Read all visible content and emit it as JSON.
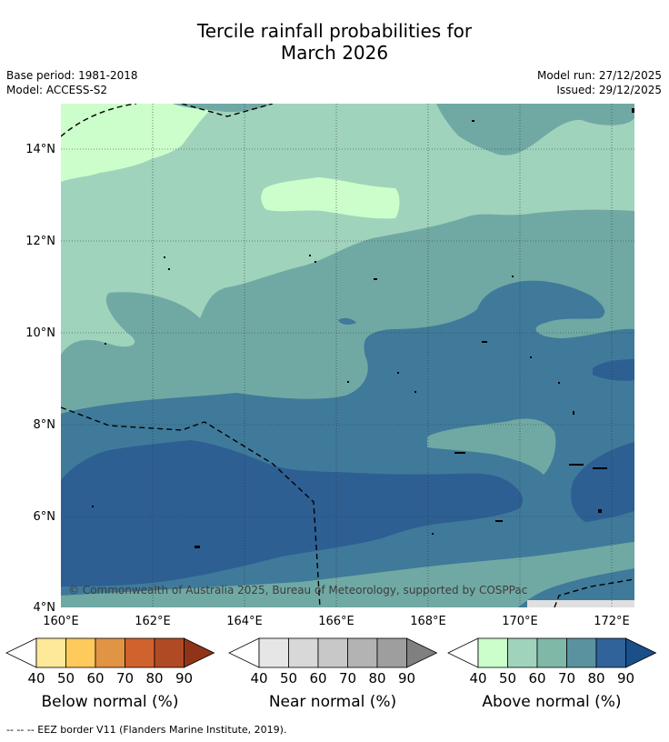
{
  "title_line1": "Tercile rainfall probabilities for",
  "title_line2": "March 2026",
  "base_period": "Base period: 1981-2018",
  "model": "Model: ACCESS-S2",
  "model_run": "Model run: 27/12/2025",
  "issued": "Issued: 29/12/2025",
  "copyright": "© Commonwealth of Australia 2025, Bureau of Meteorology, supported by COSPPac",
  "lat_labels": [
    "14°N",
    "12°N",
    "10°N",
    "8°N",
    "6°N",
    "4°N"
  ],
  "lon_labels": [
    "160°E",
    "162°E",
    "164°E",
    "166°E",
    "168°E",
    "170°E",
    "172°E"
  ],
  "colorbars": [
    {
      "title": "Below normal (%)",
      "ticks": [
        "40",
        "50",
        "60",
        "70",
        "80",
        "90"
      ],
      "colors": [
        "#fee89a",
        "#fdca5b",
        "#e09444",
        "#d0622e",
        "#b04a24",
        "#8f3418"
      ]
    },
    {
      "title": "Near normal (%)",
      "ticks": [
        "40",
        "50",
        "60",
        "70",
        "80",
        "90"
      ],
      "colors": [
        "#e6e6e6",
        "#d8d8d8",
        "#c8c8c8",
        "#b3b3b3",
        "#9e9e9e",
        "#808080"
      ]
    },
    {
      "title": "Above normal (%)",
      "ticks": [
        "40",
        "50",
        "60",
        "70",
        "80",
        "90"
      ],
      "colors": [
        "#ccfecb",
        "#a0d3bb",
        "#80b8a8",
        "#5a92a0",
        "#30639a",
        "#1a4f8a"
      ]
    }
  ],
  "footnote": "--  --  -- EEZ border V11 (Flanders Marine Institute, 2019)."
}
